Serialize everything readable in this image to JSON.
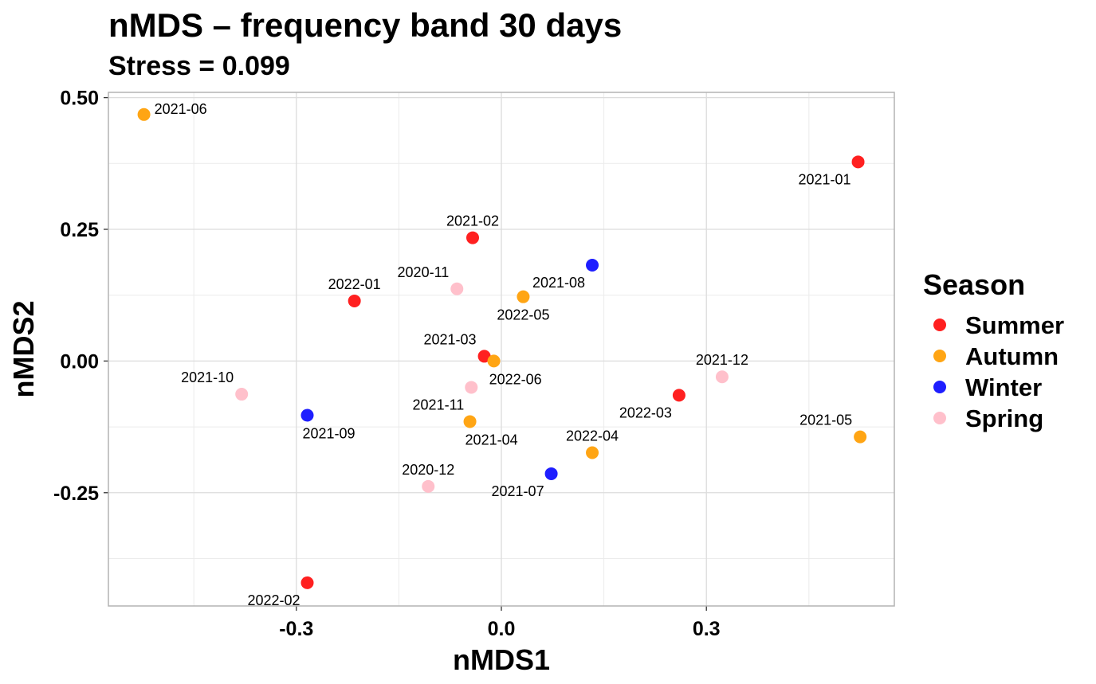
{
  "chart_data": {
    "type": "scatter",
    "title": "nMDS – frequency band 30 days",
    "subtitle": "Stress = 0.099",
    "xlabel": "nMDS1",
    "ylabel": "nMDS2",
    "xlim": [
      -0.575,
      0.575
    ],
    "ylim": [
      -0.465,
      0.51
    ],
    "x_ticks": [
      {
        "value": -0.3,
        "label": "-0.3"
      },
      {
        "value": 0.0,
        "label": "0.0"
      },
      {
        "value": 0.3,
        "label": "0.3"
      }
    ],
    "y_ticks": [
      {
        "value": 0.5,
        "label": "0.50"
      },
      {
        "value": 0.25,
        "label": "0.25"
      },
      {
        "value": 0.0,
        "label": "0.00"
      },
      {
        "value": -0.25,
        "label": "-0.25"
      }
    ],
    "x_minor": [
      -0.45,
      -0.15,
      0.15,
      0.45
    ],
    "y_minor": [
      0.375,
      0.125,
      -0.125,
      -0.375
    ],
    "grid": true,
    "legend": {
      "title": "Season",
      "position": "right",
      "entries": [
        {
          "name": "Summer",
          "color": "#FF2020"
        },
        {
          "name": "Autumn",
          "color": "#FFA514"
        },
        {
          "name": "Winter",
          "color": "#1E1EFF"
        },
        {
          "name": "Spring",
          "color": "#FFC0CB"
        }
      ]
    },
    "points": [
      {
        "label": "2021-06",
        "x": -0.523,
        "y": 0.468,
        "season": "Autumn",
        "lpos": "right"
      },
      {
        "label": "2021-01",
        "x": 0.522,
        "y": 0.378,
        "season": "Summer",
        "lpos": "below-left"
      },
      {
        "label": "2021-02",
        "x": -0.042,
        "y": 0.234,
        "season": "Summer",
        "lpos": "above"
      },
      {
        "label": "2021-08",
        "x": 0.133,
        "y": 0.182,
        "season": "Winter",
        "lpos": "below-left"
      },
      {
        "label": "2020-11",
        "x": -0.065,
        "y": 0.137,
        "season": "Spring",
        "lpos": "above-left"
      },
      {
        "label": "2022-01",
        "x": -0.215,
        "y": 0.114,
        "season": "Summer",
        "lpos": "above"
      },
      {
        "label": "2022-05",
        "x": 0.032,
        "y": 0.122,
        "season": "Autumn",
        "lpos": "below"
      },
      {
        "label": "2021-03",
        "x": -0.025,
        "y": 0.009,
        "season": "Summer",
        "lpos": "above-left"
      },
      {
        "label": "2022-06",
        "x": -0.011,
        "y": 0.0,
        "season": "Autumn",
        "lpos": "below-right"
      },
      {
        "label": "2021-12",
        "x": 0.323,
        "y": -0.03,
        "season": "Spring",
        "lpos": "above"
      },
      {
        "label": "2021-10",
        "x": -0.38,
        "y": -0.063,
        "season": "Spring",
        "lpos": "above-left"
      },
      {
        "label": "2022-03",
        "x": 0.26,
        "y": -0.065,
        "season": "Summer",
        "lpos": "below-left"
      },
      {
        "label": "2021-09",
        "x": -0.284,
        "y": -0.103,
        "season": "Winter",
        "lpos": "below-right"
      },
      {
        "label": "2021-11",
        "x": -0.044,
        "y": -0.05,
        "season": "Spring",
        "lpos": "below-left"
      },
      {
        "label": "2021-04",
        "x": -0.046,
        "y": -0.115,
        "season": "Autumn",
        "lpos": "below-right"
      },
      {
        "label": "2021-05",
        "x": 0.525,
        "y": -0.144,
        "season": "Autumn",
        "lpos": "above-left"
      },
      {
        "label": "2022-04",
        "x": 0.133,
        "y": -0.174,
        "season": "Autumn",
        "lpos": "above"
      },
      {
        "label": "2021-07",
        "x": 0.073,
        "y": -0.214,
        "season": "Winter",
        "lpos": "below-left"
      },
      {
        "label": "2020-12",
        "x": -0.107,
        "y": -0.238,
        "season": "Spring",
        "lpos": "above"
      },
      {
        "label": "2022-02",
        "x": -0.284,
        "y": -0.421,
        "season": "Summer",
        "lpos": "below-left"
      }
    ]
  }
}
